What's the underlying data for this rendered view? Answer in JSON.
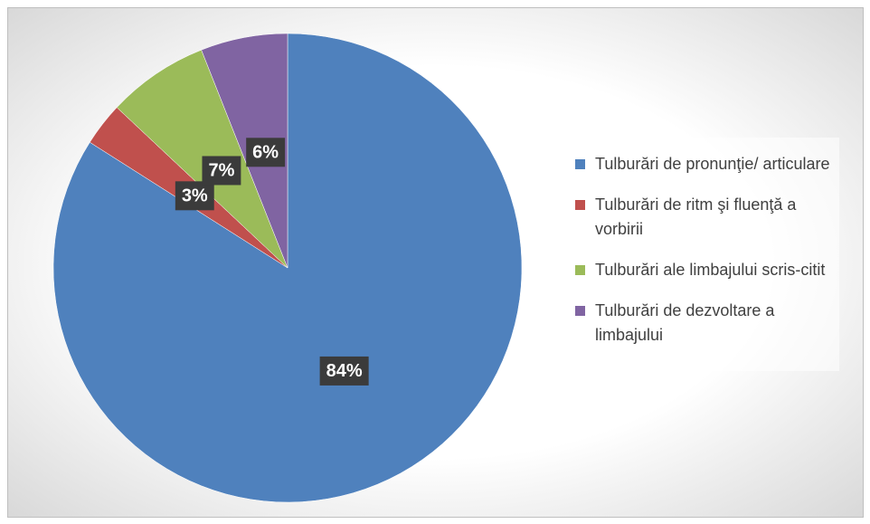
{
  "chart_data": {
    "type": "pie",
    "categories": [
      "Tulburări de    pronunţie/ articulare",
      "Tulburări de ritm şi fluenţă a vorbirii",
      "Tulburări ale  limbajului scris-citit",
      "Tulburări de dezvoltare a limbajului"
    ],
    "values": [
      84,
      3,
      7,
      6
    ],
    "value_labels": [
      "84%",
      "3%",
      "7%",
      "6%"
    ],
    "colors": [
      "#4f81bd",
      "#c0504d",
      "#9bbb59",
      "#8064a2"
    ],
    "legend": "right"
  }
}
